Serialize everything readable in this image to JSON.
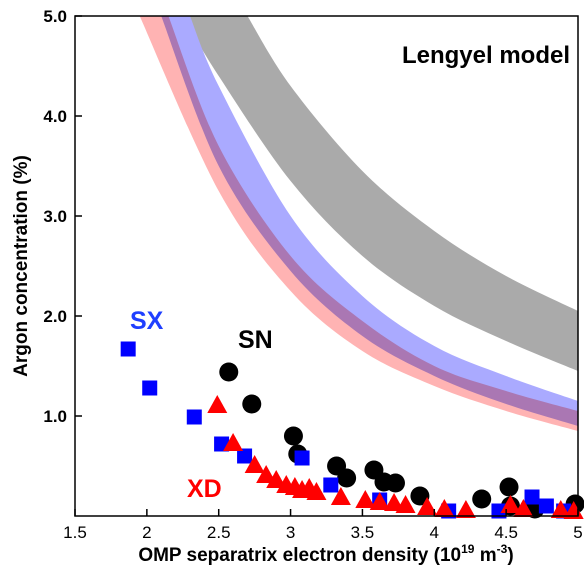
{
  "chart_data": {
    "type": "scatter",
    "title": "",
    "xlabel": "OMP separatrix electron density (10",
    "xlabel_exp": "19",
    "xlabel_unit": " m",
    "xlabel_unit_exp": "-3",
    "xlabel_close": ")",
    "ylabel": "Argon concentration (%)",
    "xlim": [
      1.5,
      5.0
    ],
    "ylim": [
      0.0,
      5.0
    ],
    "xticks": [
      {
        "v": 1.5,
        "label": "1.5"
      },
      {
        "v": 2.0,
        "label": "2"
      },
      {
        "v": 2.5,
        "label": "2.5"
      },
      {
        "v": 3.0,
        "label": "3"
      },
      {
        "v": 3.5,
        "label": "3.5"
      },
      {
        "v": 4.0,
        "label": "4"
      },
      {
        "v": 4.5,
        "label": "4.5"
      },
      {
        "v": 5.0,
        "label": "5"
      }
    ],
    "yticks": [
      {
        "v": 1.0,
        "label": "1.0"
      },
      {
        "v": 2.0,
        "label": "2.0"
      },
      {
        "v": 3.0,
        "label": "3.0"
      },
      {
        "v": 4.0,
        "label": "4.0"
      },
      {
        "v": 5.0,
        "label": "5.0"
      }
    ],
    "model_label": "Lengyel model",
    "bands": [
      {
        "name": "grey",
        "color": "#aaaaaa",
        "upper": [
          [
            2.7,
            5.0
          ],
          [
            3.0,
            4.3
          ],
          [
            3.5,
            3.45
          ],
          [
            4.0,
            2.85
          ],
          [
            4.5,
            2.4
          ],
          [
            5.0,
            2.05
          ]
        ],
        "lower": [
          [
            2.25,
            5.0
          ],
          [
            2.5,
            4.4
          ],
          [
            3.0,
            3.35
          ],
          [
            3.5,
            2.6
          ],
          [
            4.0,
            2.1
          ],
          [
            4.5,
            1.75
          ],
          [
            5.0,
            1.45
          ]
        ]
      },
      {
        "name": "blue",
        "color": "#aaaaff",
        "upper": [
          [
            2.3,
            5.0
          ],
          [
            2.5,
            4.3
          ],
          [
            3.0,
            3.0
          ],
          [
            3.5,
            2.2
          ],
          [
            4.0,
            1.7
          ],
          [
            4.5,
            1.4
          ],
          [
            5.0,
            1.15
          ]
        ],
        "lower": [
          [
            2.1,
            5.0
          ],
          [
            2.5,
            3.5
          ],
          [
            3.0,
            2.45
          ],
          [
            3.5,
            1.8
          ],
          [
            4.0,
            1.4
          ],
          [
            4.5,
            1.12
          ],
          [
            5.0,
            0.9
          ]
        ]
      },
      {
        "name": "red",
        "color": "#ff9999",
        "upper": [
          [
            2.15,
            5.0
          ],
          [
            2.5,
            3.7
          ],
          [
            3.0,
            2.6
          ],
          [
            3.5,
            1.95
          ],
          [
            4.0,
            1.5
          ],
          [
            4.5,
            1.25
          ],
          [
            5.0,
            1.05
          ]
        ],
        "lower": [
          [
            1.95,
            5.0
          ],
          [
            2.5,
            3.25
          ],
          [
            3.0,
            2.25
          ],
          [
            3.5,
            1.65
          ],
          [
            4.0,
            1.3
          ],
          [
            4.5,
            1.05
          ],
          [
            5.0,
            0.85
          ]
        ]
      }
    ],
    "series": [
      {
        "name": "SN",
        "color": "#000000",
        "marker": "circle",
        "points": [
          [
            2.57,
            1.44
          ],
          [
            2.73,
            1.12
          ],
          [
            3.02,
            0.8
          ],
          [
            3.05,
            0.62
          ],
          [
            3.32,
            0.5
          ],
          [
            3.39,
            0.38
          ],
          [
            3.58,
            0.46
          ],
          [
            3.65,
            0.34
          ],
          [
            3.73,
            0.33
          ],
          [
            3.9,
            0.2
          ],
          [
            4.33,
            0.17
          ],
          [
            4.52,
            0.29
          ],
          [
            4.53,
            0.1
          ],
          [
            4.7,
            0.07
          ],
          [
            4.98,
            0.12
          ]
        ]
      },
      {
        "name": "SX",
        "color": "#0000ff",
        "marker": "square",
        "points": [
          [
            1.87,
            1.67
          ],
          [
            2.02,
            1.28
          ],
          [
            2.33,
            0.99
          ],
          [
            2.52,
            0.72
          ],
          [
            2.68,
            0.6
          ],
          [
            3.08,
            0.58
          ],
          [
            3.28,
            0.31
          ],
          [
            3.62,
            0.16
          ],
          [
            4.1,
            0.05
          ],
          [
            4.45,
            0.05
          ],
          [
            4.68,
            0.19
          ],
          [
            4.78,
            0.1
          ],
          [
            4.9,
            0.05
          ]
        ]
      },
      {
        "name": "XD",
        "color": "#ff0000",
        "marker": "triangle",
        "points": [
          [
            2.49,
            1.1
          ],
          [
            2.6,
            0.72
          ],
          [
            2.75,
            0.5
          ],
          [
            2.83,
            0.4
          ],
          [
            2.9,
            0.35
          ],
          [
            2.97,
            0.3
          ],
          [
            3.03,
            0.28
          ],
          [
            3.08,
            0.25
          ],
          [
            3.13,
            0.27
          ],
          [
            3.18,
            0.23
          ],
          [
            3.35,
            0.18
          ],
          [
            3.52,
            0.15
          ],
          [
            3.62,
            0.13
          ],
          [
            3.72,
            0.12
          ],
          [
            3.8,
            0.1
          ],
          [
            3.95,
            0.08
          ],
          [
            4.07,
            0.06
          ],
          [
            4.22,
            0.05
          ],
          [
            4.53,
            0.1
          ],
          [
            4.62,
            0.06
          ],
          [
            4.88,
            0.05
          ],
          [
            4.97,
            0.04
          ]
        ]
      }
    ],
    "legend": "none"
  }
}
